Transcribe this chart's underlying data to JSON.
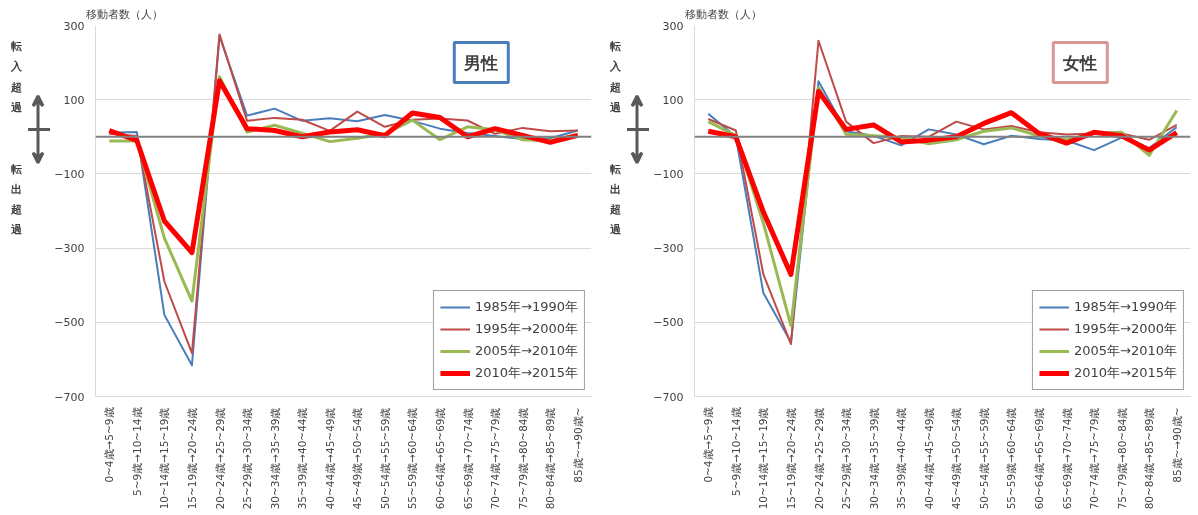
{
  "chart_data": [
    {
      "type": "line",
      "title": "男性",
      "ylabel": "移動者数（人）",
      "annotations": [
        "転入超過",
        "転出超過"
      ],
      "categories": [
        "0~4歳→5~9歳",
        "5~9歳→10~14歳",
        "10~14歳→15~19歳",
        "15~19歳→20~24歳",
        "20~24歳→25~29歳",
        "25~29歳→30~34歳",
        "30~34歳→35~39歳",
        "35~39歳→40~44歳",
        "40~44歳→45~49歳",
        "45~49歳→50~54歳",
        "50~54歳→55~59歳",
        "55~59歳→60~64歳",
        "60~64歳→65~69歳",
        "65~69歳→70~74歳",
        "70~74歳→75~79歳",
        "75~79歳→80~84歳",
        "80~84歳→85~89歳",
        "85歳~→90歳~"
      ],
      "series": [
        {
          "name": "1985年→1990年",
          "color": "#4a7ebb",
          "values": [
            11,
            13,
            -480,
            -616,
            271,
            57,
            76,
            43,
            50,
            42,
            59,
            43,
            22,
            10,
            2,
            -6,
            -4,
            17
          ]
        },
        {
          "name": "1995年→2000年",
          "color": "#be4b48",
          "values": [
            8,
            2,
            -390,
            -583,
            276,
            43,
            51,
            46,
            16,
            68,
            27,
            46,
            49,
            44,
            8,
            24,
            15,
            17
          ]
        },
        {
          "name": "2005年→2010年",
          "color": "#98b954",
          "values": [
            -11,
            -11,
            -273,
            -443,
            162,
            13,
            31,
            10,
            -13,
            -4,
            8,
            45,
            -8,
            27,
            19,
            -8,
            -10,
            6
          ]
        },
        {
          "name": "2010年→2015年",
          "color": "#ff0000",
          "values": [
            17,
            -10,
            -227,
            -312,
            151,
            22,
            17,
            0,
            13,
            19,
            3,
            64,
            52,
            0,
            22,
            4,
            -15,
            4
          ]
        }
      ],
      "ylim": [
        -700,
        300
      ],
      "yticks": [
        -700,
        -500,
        -300,
        -100,
        100,
        300
      ],
      "grid": "y",
      "legend": "bottom right",
      "ref_lines": [
        {
          "axis": "y",
          "value": 0,
          "color": "#808080"
        }
      ]
    },
    {
      "type": "line",
      "title": "女性",
      "ylabel": "移動者数（人）",
      "annotations": [
        "転入超過",
        "転出超過"
      ],
      "categories": [
        "0~4歳→5~9歳",
        "5~9歳→10~14歳",
        "10~14歳→15~19歳",
        "15~19歳→20~24歳",
        "20~24歳→25~29歳",
        "25~29歳→30~34歳",
        "30~34歳→35~39歳",
        "35~39歳→40~44歳",
        "40~44歳→45~49歳",
        "45~49歳→50~54歳",
        "50~54歳→55~59歳",
        "55~59歳→60~64歳",
        "60~64歳→65~69歳",
        "65~69歳→70~74歳",
        "70~74歳→75~79歳",
        "75~79歳→80~84歳",
        "80~84歳→85~89歳",
        "85歳~→90歳~"
      ],
      "series": [
        {
          "name": "1985年→1990年",
          "color": "#4a7ebb",
          "values": [
            62,
            0,
            -421,
            -554,
            150,
            15,
            3,
            -23,
            20,
            6,
            -20,
            3,
            -6,
            -10,
            -36,
            -2,
            -30,
            26
          ]
        },
        {
          "name": "1995年→2000年",
          "color": "#be4b48",
          "values": [
            48,
            17,
            -371,
            -559,
            259,
            41,
            -17,
            2,
            0,
            41,
            20,
            29,
            12,
            6,
            9,
            9,
            -8,
            32
          ]
        },
        {
          "name": "2005年→2010年",
          "color": "#98b954",
          "values": [
            41,
            3,
            -233,
            -509,
            133,
            7,
            3,
            -2,
            -19,
            -8,
            15,
            24,
            3,
            -8,
            9,
            12,
            -50,
            71
          ]
        },
        {
          "name": "2010年→2015年",
          "color": "#ff0000",
          "values": [
            15,
            0,
            -203,
            -371,
            122,
            20,
            32,
            -14,
            -9,
            0,
            36,
            65,
            9,
            -17,
            12,
            3,
            -36,
            11
          ]
        }
      ],
      "ylim": [
        -700,
        300
      ],
      "yticks": [
        -700,
        -500,
        -300,
        -100,
        100,
        300
      ],
      "grid": "y",
      "legend": "bottom right",
      "ref_lines": [
        {
          "axis": "y",
          "value": 0,
          "color": "#808080"
        }
      ]
    }
  ]
}
